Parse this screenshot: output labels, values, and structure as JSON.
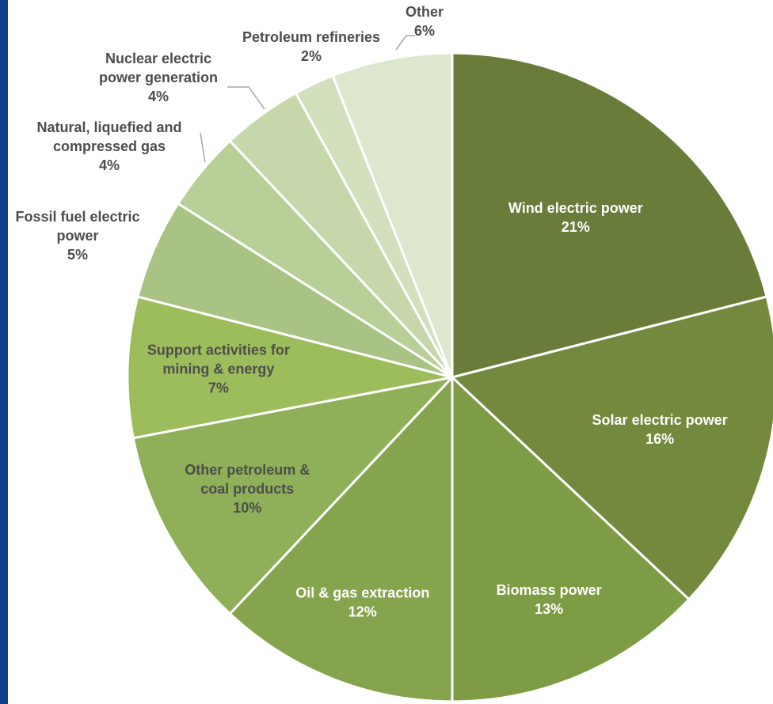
{
  "chart_data": {
    "type": "pie",
    "title": "",
    "slices": [
      {
        "label_lines": [
          "Wind electric power"
        ],
        "pct_text": "21%",
        "value": 21,
        "color": "#6a7c3a",
        "text_color": "#ffffff"
      },
      {
        "label_lines": [
          "Solar electric power"
        ],
        "pct_text": "16%",
        "value": 16,
        "color": "#738a3e",
        "text_color": "#ffffff"
      },
      {
        "label_lines": [
          "Biomass power"
        ],
        "pct_text": "13%",
        "value": 13,
        "color": "#7e9b46",
        "text_color": "#ffffff"
      },
      {
        "label_lines": [
          "Oil & gas extraction"
        ],
        "pct_text": "12%",
        "value": 12,
        "color": "#86a34d",
        "text_color": "#ffffff"
      },
      {
        "label_lines": [
          "Other petroleum &",
          "coal products"
        ],
        "pct_text": "10%",
        "value": 10,
        "color": "#8faf58",
        "text_color": "#4d4d4d"
      },
      {
        "label_lines": [
          "Support activities for",
          "mining & energy"
        ],
        "pct_text": "7%",
        "value": 7,
        "color": "#9dbd5c",
        "text_color": "#4d4d4d"
      },
      {
        "label_lines": [
          "Fossil fuel electric",
          "power"
        ],
        "pct_text": "5%",
        "value": 5,
        "color": "#a9c384",
        "text_color": "#4d4d4d"
      },
      {
        "label_lines": [
          "Natural, liquefied and",
          "compressed gas"
        ],
        "pct_text": "4%",
        "value": 4,
        "color": "#b8cf98",
        "text_color": "#4d4d4d"
      },
      {
        "label_lines": [
          "Nuclear electric",
          "power generation"
        ],
        "pct_text": "4%",
        "value": 4,
        "color": "#c6d8ab",
        "text_color": "#4d4d4d"
      },
      {
        "label_lines": [
          "Petroleum refineries"
        ],
        "pct_text": "2%",
        "value": 2,
        "color": "#d2e0bd",
        "text_color": "#4d4d4d"
      },
      {
        "label_lines": [
          "Other"
        ],
        "pct_text": "6%",
        "value": 6,
        "color": "#dde7cd",
        "text_color": "#4d4d4d"
      }
    ],
    "legend": "none"
  },
  "theme": {
    "frame_color": "#0f3f8c",
    "slice_border": "#ffffff",
    "leader_color": "#a6a6a6"
  }
}
